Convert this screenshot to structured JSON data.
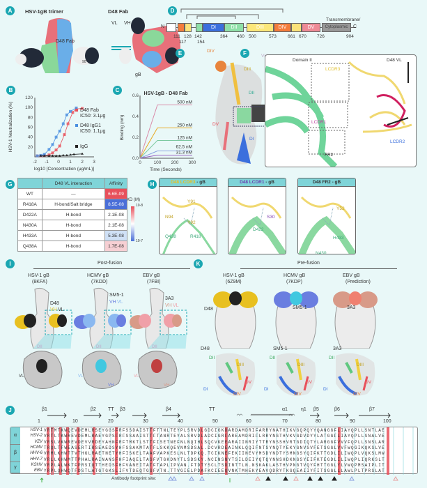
{
  "panels": {
    "A": "A",
    "B": "B",
    "C": "C",
    "D": "D",
    "E": "E",
    "F": "F",
    "G": "G",
    "H": "H",
    "I": "I",
    "J": "J",
    "K": "K"
  },
  "panelA": {
    "title": "HSV-1gB trimer",
    "fab_label": "D48 Fab",
    "right_title": "D48 Fab",
    "vl": "VL",
    "vh": "VH",
    "gb": "gB",
    "rotation": "90°"
  },
  "panelD": {
    "n": "N",
    "c": "C",
    "tm": "Transmembrane/",
    "cyto": "Cytoplasmic",
    "domains": [
      {
        "label": "",
        "color": "#ffffff"
      },
      {
        "label": "",
        "color": "#f47c3c"
      },
      {
        "label": "",
        "color": "#fbe27a"
      },
      {
        "label": "",
        "color": "#8fe0a8"
      },
      {
        "label": "DI",
        "color": "#3b6fdd"
      },
      {
        "label": "DII",
        "color": "#8fe0a8"
      },
      {
        "label": "DIII",
        "color": "#fbe77a"
      },
      {
        "label": "DIV",
        "color": "#f47c3c"
      },
      {
        "label": "",
        "color": "#fbe27a"
      },
      {
        "label": "DV",
        "color": "#ee8a96"
      }
    ],
    "positions_top": [
      "111",
      "128",
      "142",
      "364",
      "460",
      "500",
      "573",
      "661",
      "670",
      "726",
      "904"
    ],
    "positions_bottom": [
      "117",
      "154"
    ]
  },
  "panelE": {
    "labels": [
      "DIV",
      "DIII",
      "VH",
      "DII",
      "VL",
      "DV",
      "DI"
    ]
  },
  "panelF": {
    "labels": [
      "Domain II",
      "D48 VL",
      "LCDR3",
      "LCDR1",
      "LCDR2",
      "FR2"
    ]
  },
  "chart_data": [
    {
      "type": "scatter",
      "panel": "B",
      "xlabel": "log10 [Concentration (μg/mL)]",
      "ylabel": "HSV-1 Neutralization (%)",
      "xlim": [
        -2,
        3
      ],
      "ylim": [
        0,
        120
      ],
      "xticks": [
        "-2",
        "-1",
        "0",
        "1",
        "2",
        "3"
      ],
      "yticks": [
        "20",
        "40",
        "60",
        "80",
        "100",
        "120"
      ],
      "legend": "right",
      "series": [
        {
          "name": "D48 Fab",
          "ic50": "IC50: 3.1μg",
          "color": "#e8505b",
          "x": [
            -1.8,
            -1.5,
            -1.2,
            -0.8,
            -0.5,
            -0.2,
            0.1,
            0.5,
            0.8,
            1.2,
            1.5,
            2.0
          ],
          "y": [
            2,
            2,
            3,
            4,
            8,
            14,
            22,
            45,
            67,
            90,
            97,
            98
          ]
        },
        {
          "name": "D48 IgG1",
          "ic50": "IC50: 1.1μg",
          "color": "#4a8fe0",
          "x": [
            -1.8,
            -1.5,
            -1.2,
            -0.8,
            -0.5,
            -0.2,
            0.1,
            0.4,
            0.7,
            1.0,
            1.5
          ],
          "y": [
            2,
            3,
            5,
            15,
            25,
            40,
            52,
            67,
            85,
            92,
            99
          ]
        },
        {
          "name": "IgG",
          "color": "#222222",
          "x": [
            -1.5,
            -1.2,
            -0.8,
            -0.5,
            -0.2,
            0.1,
            0.4,
            0.7,
            1.0,
            1.3,
            2.0
          ],
          "y": [
            2,
            2,
            2,
            2,
            2,
            2,
            3,
            3,
            4,
            5,
            6
          ]
        }
      ]
    },
    {
      "type": "line",
      "panel": "C",
      "title": "HSV-1gB - D48 Fab",
      "xlabel": "Time (Seconds)",
      "ylabel": "Binding (nm)",
      "xlim": [
        0,
        300
      ],
      "ylim": [
        0,
        0.6
      ],
      "xticks": [
        "0",
        "100",
        "200",
        "300"
      ],
      "yticks": [
        "0.0",
        "0.2",
        "0.4",
        "0.6"
      ],
      "series": [
        {
          "name": "500 nM",
          "color": "#d98aa8",
          "plateau": 0.51
        },
        {
          "name": "250 nM",
          "color": "#e8a820",
          "plateau": 0.29
        },
        {
          "name": "125 nM",
          "color": "#7cc9a0",
          "plateau": 0.17
        },
        {
          "name": "62.5 nM",
          "color": "#8aa0e0",
          "plateau": 0.07
        },
        {
          "name": "31.3 nM",
          "color": "#9a60c0",
          "plateau": 0.03
        }
      ]
    }
  ],
  "panelG": {
    "headers": [
      "",
      "D48 VL interaction",
      "Affinity"
    ],
    "colorbar_title": "KD (M)",
    "cb_top": "10-8",
    "cb_bottom": "10-7",
    "rows": [
      {
        "mutant": "WT",
        "interaction": "—",
        "affinity": "6.6E-09",
        "color": "#e8505b"
      },
      {
        "mutant": "R418A",
        "interaction": "H-bond/Salt bridge",
        "affinity": "8.5E-08",
        "color": "#4a6fd8"
      },
      {
        "mutant": "D422A",
        "interaction": "H-bond",
        "affinity": "2.1E-08",
        "color": "#ffffff"
      },
      {
        "mutant": "N430A",
        "interaction": "H-bond",
        "affinity": "2.1E-08",
        "color": "#ffffff"
      },
      {
        "mutant": "H433A",
        "interaction": "H-bond",
        "affinity": "5.3E-08",
        "color": "#cfe0f5"
      },
      {
        "mutant": "Q438A",
        "interaction": "H-bond",
        "affinity": "1.7E-08",
        "color": "#f6cfd3"
      }
    ]
  },
  "panelH": [
    {
      "prefix": "D48 LCDR3",
      "suffix": " - gB",
      "color": "#e8c020",
      "residues": [
        "Y91",
        "N94",
        "Y92",
        "Q438",
        "R418"
      ]
    },
    {
      "prefix": "D48 LCDR1",
      "suffix": " - gB",
      "color": "#6a3fb0",
      "residues": [
        "S30",
        "D422"
      ]
    },
    {
      "prefix": "D48 FR2",
      "suffix": " - gB",
      "color": "#333333",
      "residues": [
        "Y52",
        "H433",
        "N430"
      ]
    }
  ],
  "panelI": {
    "title": "Post-fusion",
    "items": [
      {
        "name": "HSV-1 gB",
        "pdb": "(8KFA)",
        "ab": "D48",
        "vh_color": "#e8c020",
        "vl_color": "#222222",
        "zoom_labels": [
          "DII",
          "VL"
        ]
      },
      {
        "name": "HCMV gB",
        "pdb": "(7KDD)",
        "ab": "SM5-1",
        "vh_color": "#6a7ee0",
        "vl_color": "#8ab8f0",
        "zoom_labels": [
          "DII",
          "VL",
          "VH"
        ]
      },
      {
        "name": "EBV gB",
        "pdb": "(7FBI)",
        "ab": "3A3",
        "vh_color": "#d89a88",
        "vl_color": "#f0a0a8",
        "zoom_labels": [
          "DII",
          "VL",
          "VH"
        ]
      }
    ],
    "vh": "VH",
    "vl": "VL"
  },
  "panelK": {
    "title": "Pre-fusion",
    "items": [
      {
        "name": "HSV-1 gB",
        "pdb": "(6Z9M)",
        "ab": "D48"
      },
      {
        "name": "HCMV gB",
        "pdb": "(7KDP)",
        "ab": "SM5-1"
      },
      {
        "name": "EBV gB",
        "pdb": "(Prediction)",
        "ab": "3A3"
      }
    ],
    "domains": [
      "DII",
      "DIII",
      "DI",
      "DV",
      "DIV"
    ]
  },
  "panelJ": {
    "ss": [
      "β1",
      "β2",
      "TT",
      "β3",
      "β4",
      "TT",
      "α1",
      "η1",
      "β5",
      "β6",
      "β7"
    ],
    "ticks": [
      "1",
      "10",
      "20",
      "30",
      "40",
      "50",
      "60",
      "70",
      "80",
      "90",
      "100"
    ],
    "groups": [
      "α",
      "β",
      "γ"
    ],
    "rows": [
      {
        "species": "HSV-1",
        "seq": "VRTMTKWQEVDEMLRSEYGGSFRFSSDAISTTFTTNLTEYPLSRVDLGDCIGKDARDAMDRIFARRYNATHIKVGQPQYYQANGGFLIAYQPLLSNTLAE"
      },
      {
        "species": "HSV-2",
        "seq": "VRTLTKWREVDEMLRAEYGPSFRFSSAAISTTFTANRTEYALSRVDLADCIGRFAREAMDRIFLRRYNGTHVKVGDVDYYLATGGFLIAYQPLLSNALVE"
      },
      {
        "species": "VZV",
        "seq": "VRSLVKWREVDEVVRDEYAHNFRFTMKTLSTTFISETNEFNLNQIHLSQCVKEEARAIINRIYTTRYNSSHVRTGDIQTYLARGGFVVVFQPLLSNSLAR"
      },
      {
        "species": "HCMV",
        "seq": "TRQLTFWEASERTIRSEAEDSYHFSSAKMTATFLSKKQEVNMSDSAL.DCVRDEAINKLQQIFNTSYNQTYEKYGNVSVFETSGGLVVFWQGIKQKSLVE"
      },
      {
        "species": "HHV-6",
        "seq": "VRMLKHWTTVTHGLRAETNETYHFISKELTAAFVAPKESLNLTDPKQ.TCIKNEFEKIINEVYMSDYNDTYSMNGSYQIFKTTGDLILIWQPLVQKSLMW"
      },
      {
        "species": "HHV-7",
        "seq": "VRLLKHWMTTPHALRAINANSFHFIAQELTASFVTGKDNYTLSDSKY.NCINSNYTSILDEIYQTQYNNSHDKNGSYEIFKTEGDLILIWQPLIQRKSLT"
      },
      {
        "species": "KSHV",
        "seq": "VRPLALWKTFPRSIQTTHEDSFHFVANEITATFTAPLIPVAN.FTDTYSCLTSDINTTLN.NSKAKLASTHVPNGTVQYFHTTGGLYLVWQPMSAIPLIT"
      },
      {
        "species": "EBV",
        "seq": "YRPLQHWQTFDSTLATGTGKSLIFVTDEQTGSFVTN.TTVGIELPDAFKCIEEQVNKTMHEKYEAVQDRYTKGQEAIIYFITSGGLLLAWLPLTPRSLAT"
      }
    ],
    "footprint_label": "Antibody footprint site:"
  }
}
